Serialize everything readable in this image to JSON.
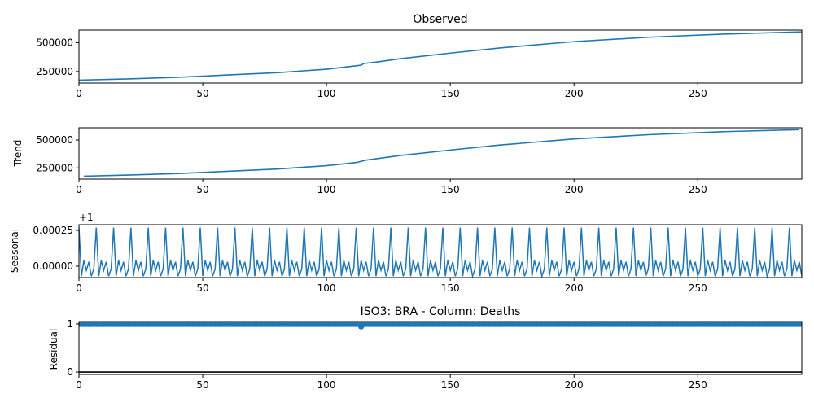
{
  "figure_title": "ISO3: BRA - Column: Deaths",
  "colors": {
    "series": "#1f77b4",
    "axis": "#000000",
    "zero_line": "#000000"
  },
  "chart_data": [
    {
      "type": "line",
      "panel": "observed",
      "title": "Observed",
      "ylabel": "",
      "xlim": [
        0,
        292
      ],
      "ylim": [
        150000,
        610000
      ],
      "xticks": [
        0,
        50,
        100,
        150,
        200,
        250
      ],
      "yticks": [
        250000,
        500000
      ],
      "ytick_labels": [
        "250000",
        "500000"
      ],
      "x": [
        0,
        20,
        40,
        60,
        80,
        100,
        112,
        114,
        115,
        120,
        130,
        150,
        170,
        200,
        230,
        260,
        292
      ],
      "values": [
        175000,
        186000,
        200000,
        220000,
        240000,
        270000,
        300000,
        305000,
        320000,
        332000,
        362000,
        410000,
        455000,
        510000,
        548000,
        575000,
        595000
      ]
    },
    {
      "type": "line",
      "panel": "trend",
      "title": "",
      "ylabel": "Trend",
      "xlim": [
        0,
        292
      ],
      "ylim": [
        150000,
        610000
      ],
      "xticks": [
        0,
        50,
        100,
        150,
        200,
        250
      ],
      "yticks": [
        250000,
        500000
      ],
      "ytick_labels": [
        "250000",
        "500000"
      ],
      "x": [
        2,
        20,
        40,
        60,
        80,
        100,
        112,
        116,
        120,
        130,
        150,
        170,
        200,
        230,
        260,
        291
      ],
      "values": [
        176000,
        186000,
        200000,
        220000,
        240000,
        270000,
        298000,
        320000,
        332000,
        362000,
        410000,
        455000,
        510000,
        548000,
        575000,
        593000
      ]
    },
    {
      "type": "line",
      "panel": "seasonal",
      "title": "",
      "ylabel": "Seasonal",
      "offset_label": "+1",
      "xlim": [
        0,
        292
      ],
      "ylim": [
        -8e-05,
        0.00029
      ],
      "xticks": [
        0,
        50,
        100,
        150,
        200,
        250
      ],
      "yticks": [
        0.0,
        0.00025
      ],
      "ytick_labels": [
        "0.00000",
        "0.00025"
      ],
      "period": 7,
      "cycle": [
        0.00027,
        -7e-05,
        4e-05,
        -3e-05,
        3e-05,
        -7e-05,
        -2e-05
      ]
    },
    {
      "type": "scatter",
      "panel": "residual",
      "title": "",
      "ylabel": "Residual",
      "xlim": [
        0,
        292
      ],
      "ylim": [
        -0.05,
        1.05
      ],
      "xticks": [
        0,
        50,
        100,
        150,
        200,
        250
      ],
      "yticks": [
        0,
        1
      ],
      "ytick_labels": [
        "0",
        "1"
      ],
      "baseline": 0,
      "point_value": 1.0,
      "dip": {
        "x": 114,
        "value": 0.95
      }
    }
  ]
}
